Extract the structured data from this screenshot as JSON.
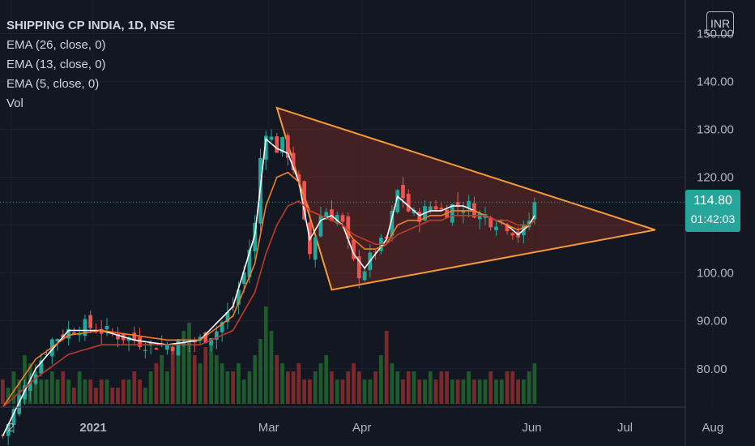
{
  "legend": {
    "title": "SHIPPING CP INDIA, 1D, NSE",
    "lines": [
      "EMA (26, close, 0)",
      "EMA (13, close, 0)",
      "EMA (5, close, 0)",
      "Vol"
    ]
  },
  "currency": "INR",
  "last_price": {
    "value": "114.80",
    "countdown": "01:42:03"
  },
  "colors": {
    "background": "#131722",
    "up": "#26a69a",
    "down": "#ef5350",
    "up_volume": "#1e5a2c",
    "down_volume": "#7a2a2a",
    "ema5": "#ffffff",
    "ema13": "#f57c29",
    "ema26": "#c0392b",
    "triangle": "#f59a3a",
    "triangle_fill": "#6b2a24",
    "price_line": "#26a69a"
  },
  "chart_data": {
    "type": "candlestick",
    "title": "SHIPPING CP INDIA, 1D, NSE",
    "y_axis": {
      "ticks": [
        80,
        90,
        100,
        110,
        120,
        130,
        140,
        150
      ],
      "range": [
        72,
        157
      ],
      "side": "right"
    },
    "x_axis": {
      "tick_labels": [
        "2",
        "2021",
        "Mar",
        "Apr",
        "Jun",
        "Jul",
        "Aug"
      ]
    },
    "close_series": [
      [
        0,
        66
      ],
      [
        3,
        74
      ],
      [
        6,
        80
      ],
      [
        9,
        86
      ],
      [
        12,
        88
      ],
      [
        15,
        89
      ],
      [
        18,
        88
      ],
      [
        21,
        87
      ],
      [
        24,
        86
      ],
      [
        27,
        85
      ],
      [
        30,
        85
      ],
      [
        33,
        85
      ],
      [
        36,
        86
      ],
      [
        39,
        88
      ],
      [
        42,
        93
      ],
      [
        44,
        100
      ],
      [
        46,
        110
      ],
      [
        47,
        124
      ],
      [
        48,
        130
      ],
      [
        49,
        128
      ],
      [
        50,
        126
      ],
      [
        51,
        127
      ],
      [
        52,
        125
      ],
      [
        53,
        122
      ],
      [
        54,
        118
      ],
      [
        55,
        110
      ],
      [
        56,
        104
      ],
      [
        57,
        108
      ],
      [
        58,
        112
      ],
      [
        59,
        113
      ],
      [
        60,
        112
      ],
      [
        61,
        112
      ],
      [
        62,
        110
      ],
      [
        63,
        106
      ],
      [
        64,
        102
      ],
      [
        65,
        100
      ],
      [
        66,
        101
      ],
      [
        67,
        103
      ],
      [
        68,
        105
      ],
      [
        69,
        106
      ],
      [
        70,
        107
      ],
      [
        71,
        112
      ],
      [
        72,
        117
      ],
      [
        73,
        116
      ],
      [
        74,
        113
      ],
      [
        75,
        112
      ],
      [
        76,
        112
      ],
      [
        77,
        113
      ],
      [
        78,
        114
      ],
      [
        79,
        114
      ],
      [
        80,
        113
      ],
      [
        81,
        113
      ],
      [
        82,
        114
      ],
      [
        83,
        114
      ],
      [
        84,
        114
      ],
      [
        85,
        114
      ],
      [
        86,
        113
      ],
      [
        87,
        112
      ],
      [
        88,
        112
      ],
      [
        89,
        111
      ],
      [
        90,
        111
      ],
      [
        91,
        111
      ],
      [
        92,
        110
      ],
      [
        93,
        109
      ],
      [
        94,
        108
      ],
      [
        95,
        109
      ],
      [
        96,
        111
      ],
      [
        97,
        114.8
      ]
    ],
    "ema_series": [
      {
        "name": "EMA (5, close, 0)",
        "color": "#ffffff",
        "points": [
          [
            0,
            66
          ],
          [
            6,
            80
          ],
          [
            12,
            88
          ],
          [
            18,
            88
          ],
          [
            24,
            86
          ],
          [
            30,
            85
          ],
          [
            36,
            86
          ],
          [
            42,
            93
          ],
          [
            46,
            108
          ],
          [
            48,
            128
          ],
          [
            50,
            126
          ],
          [
            52,
            125
          ],
          [
            54,
            119
          ],
          [
            56,
            107
          ],
          [
            58,
            111
          ],
          [
            60,
            112
          ],
          [
            62,
            110
          ],
          [
            64,
            104
          ],
          [
            66,
            101
          ],
          [
            68,
            104
          ],
          [
            70,
            107
          ],
          [
            72,
            116
          ],
          [
            74,
            114
          ],
          [
            76,
            112
          ],
          [
            78,
            113
          ],
          [
            80,
            113
          ],
          [
            82,
            114
          ],
          [
            84,
            114
          ],
          [
            86,
            113
          ],
          [
            88,
            112
          ],
          [
            90,
            111
          ],
          [
            92,
            110
          ],
          [
            94,
            108
          ],
          [
            96,
            110
          ],
          [
            97,
            112
          ]
        ]
      },
      {
        "name": "EMA (13, close, 0)",
        "color": "#f57c29",
        "points": [
          [
            0,
            72
          ],
          [
            6,
            82
          ],
          [
            12,
            87
          ],
          [
            18,
            88
          ],
          [
            24,
            87
          ],
          [
            30,
            86
          ],
          [
            36,
            86
          ],
          [
            42,
            91
          ],
          [
            46,
            102
          ],
          [
            48,
            114
          ],
          [
            50,
            120
          ],
          [
            52,
            121
          ],
          [
            54,
            119
          ],
          [
            56,
            113
          ],
          [
            58,
            112
          ],
          [
            60,
            111
          ],
          [
            62,
            110
          ],
          [
            64,
            107
          ],
          [
            66,
            105
          ],
          [
            68,
            105
          ],
          [
            70,
            106
          ],
          [
            72,
            110
          ],
          [
            74,
            111
          ],
          [
            76,
            111
          ],
          [
            78,
            112
          ],
          [
            80,
            112
          ],
          [
            82,
            113
          ],
          [
            84,
            113
          ],
          [
            86,
            113
          ],
          [
            88,
            112
          ],
          [
            90,
            111
          ],
          [
            92,
            110
          ],
          [
            94,
            109
          ],
          [
            96,
            110
          ],
          [
            97,
            111
          ]
        ]
      },
      {
        "name": "EMA (26, close, 0)",
        "color": "#c0392b",
        "points": [
          [
            0,
            72
          ],
          [
            6,
            78
          ],
          [
            12,
            83
          ],
          [
            18,
            85
          ],
          [
            24,
            85
          ],
          [
            30,
            85
          ],
          [
            36,
            85
          ],
          [
            42,
            88
          ],
          [
            46,
            96
          ],
          [
            48,
            104
          ],
          [
            50,
            110
          ],
          [
            52,
            114
          ],
          [
            54,
            115
          ],
          [
            56,
            113
          ],
          [
            58,
            112
          ],
          [
            60,
            111
          ],
          [
            62,
            110
          ],
          [
            64,
            108
          ],
          [
            66,
            107
          ],
          [
            68,
            106
          ],
          [
            70,
            106
          ],
          [
            72,
            108
          ],
          [
            74,
            109
          ],
          [
            76,
            110
          ],
          [
            78,
            111
          ],
          [
            80,
            111
          ],
          [
            82,
            112
          ],
          [
            84,
            112
          ],
          [
            86,
            112
          ],
          [
            88,
            112
          ],
          [
            90,
            111
          ],
          [
            92,
            111
          ],
          [
            94,
            110
          ],
          [
            96,
            110
          ],
          [
            97,
            111
          ]
        ]
      }
    ],
    "volume": [
      3,
      2,
      4,
      3,
      6,
      5,
      4,
      3,
      3,
      4,
      3,
      4,
      3,
      2,
      4,
      3,
      3,
      2,
      3,
      3,
      2,
      2,
      3,
      3,
      4,
      3,
      2,
      4,
      5,
      6,
      4,
      7,
      8,
      9,
      10,
      6,
      5,
      7,
      8,
      6,
      5,
      4,
      4,
      5,
      3,
      4,
      6,
      8,
      12,
      9,
      6,
      5,
      4,
      4,
      5,
      3,
      3,
      4,
      5,
      6,
      4,
      3,
      3,
      4,
      5,
      4,
      3,
      3,
      4,
      6,
      9,
      5,
      4,
      3,
      4,
      4,
      3,
      3,
      4,
      3,
      4,
      4,
      3,
      3,
      3,
      4,
      3,
      3,
      3,
      4,
      3,
      3,
      4,
      4,
      3,
      3,
      4,
      5
    ],
    "triangle": {
      "apex_top": [
        50,
        134.5
      ],
      "apex_bottom": [
        60,
        96.5
      ],
      "apex_right": [
        119,
        109
      ]
    },
    "last_price": 114.8
  }
}
